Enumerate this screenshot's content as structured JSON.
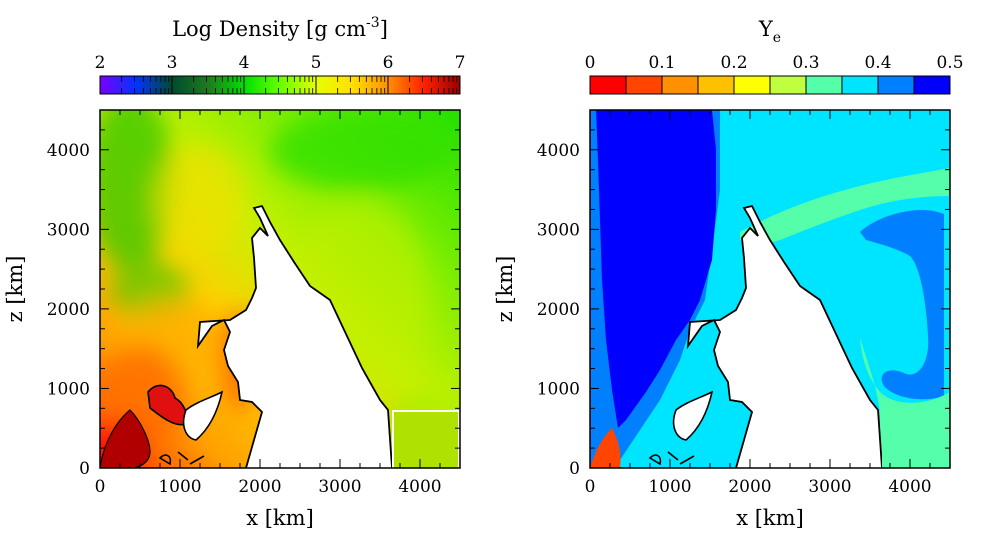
{
  "chart_data": [
    {
      "type": "heatmap",
      "title": "Log Density [g cm",
      "title_sup": "-3",
      "title_end": "]",
      "xlabel": "x [km]",
      "ylabel": "z [km]",
      "xlim": [
        0,
        4500
      ],
      "ylim": [
        0,
        4500
      ],
      "xticks": [
        "0",
        "1000",
        "2000",
        "3000",
        "4000"
      ],
      "yticks": [
        "0",
        "1000",
        "2000",
        "3000",
        "4000"
      ],
      "colorbar": {
        "range": [
          2,
          7
        ],
        "ticks": [
          "2",
          "3",
          "4",
          "5",
          "6",
          "7"
        ],
        "stops": [
          "#7a00ff",
          "#0033ff",
          "#004a30",
          "#1f7a1f",
          "#00e000",
          "#66ff00",
          "#e6ff00",
          "#ffe000",
          "#ff9000",
          "#ff2000",
          "#990000"
        ]
      }
    },
    {
      "type": "heatmap",
      "title": "Y",
      "title_sub": "e",
      "xlabel": "x [km]",
      "ylabel": "z [km]",
      "xlim": [
        0,
        4500
      ],
      "ylim": [
        0,
        4500
      ],
      "xticks": [
        "0",
        "1000",
        "2000",
        "3000",
        "4000"
      ],
      "yticks": [
        "0",
        "1000",
        "2000",
        "3000",
        "4000"
      ],
      "colorbar": {
        "range": [
          0,
          0.5
        ],
        "ticks": [
          "0",
          "0.1",
          "0.2",
          "0.3",
          "0.4",
          "0.5"
        ],
        "bins": [
          "#ff0000",
          "#ff4500",
          "#ff9000",
          "#ffc000",
          "#ffff00",
          "#c0ff40",
          "#55ffaa",
          "#00e5ff",
          "#0080ff",
          "#0000ff"
        ]
      }
    }
  ]
}
